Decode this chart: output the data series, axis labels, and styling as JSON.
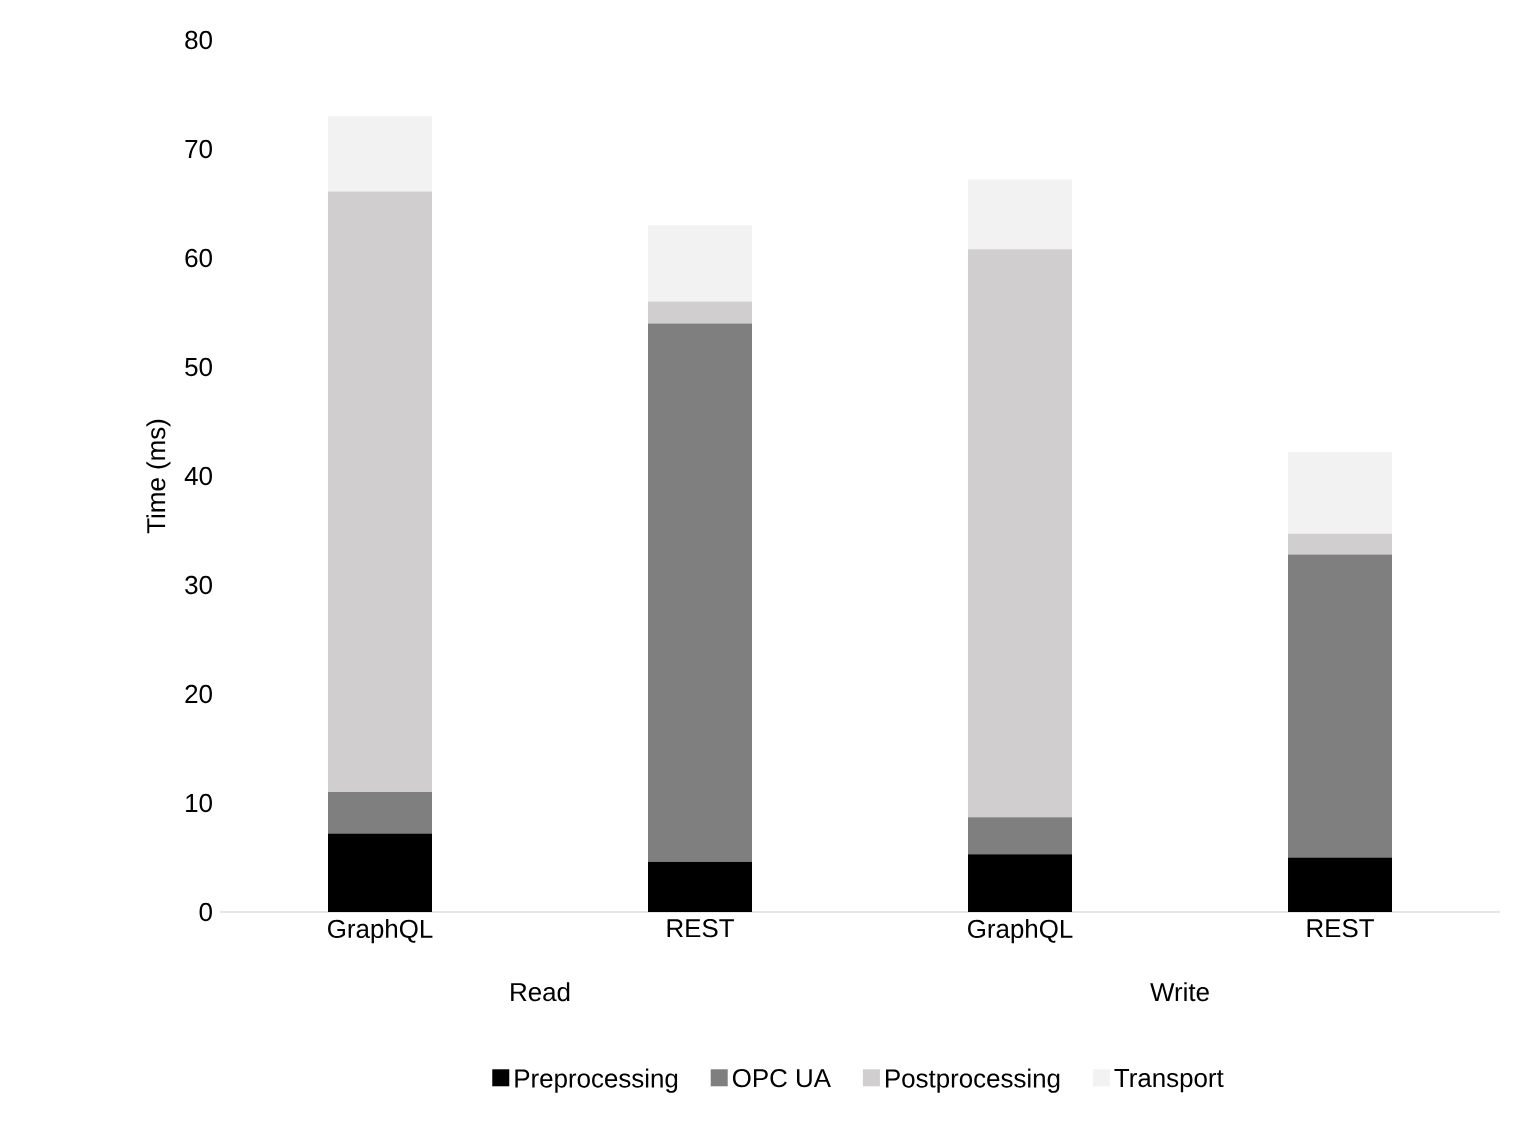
{
  "chart_data": {
    "type": "bar",
    "stacked": true,
    "ylabel": "Time (ms)",
    "categories": [
      "GraphQL",
      "REST",
      "GraphQL",
      "REST"
    ],
    "annotations": [
      "Read",
      "Write"
    ],
    "ylim": [
      0,
      80
    ],
    "yticks": [
      0,
      10,
      20,
      30,
      40,
      50,
      60,
      70,
      80
    ],
    "legend": "bottom",
    "series": [
      {
        "name": "Preprocessing",
        "color": "#000000",
        "values": [
          7.2,
          4.6,
          5.3,
          5.0
        ]
      },
      {
        "name": "OPC UA",
        "color": "#7f7f7f",
        "values": [
          3.8,
          49.4,
          3.4,
          27.8
        ]
      },
      {
        "name": "Postprocessing",
        "color": "#d0cece",
        "values": [
          55.1,
          2.0,
          52.1,
          1.9
        ]
      },
      {
        "name": "Transport",
        "color": "#f2f2f2",
        "values": [
          6.9,
          7.0,
          6.4,
          7.5
        ]
      }
    ]
  }
}
